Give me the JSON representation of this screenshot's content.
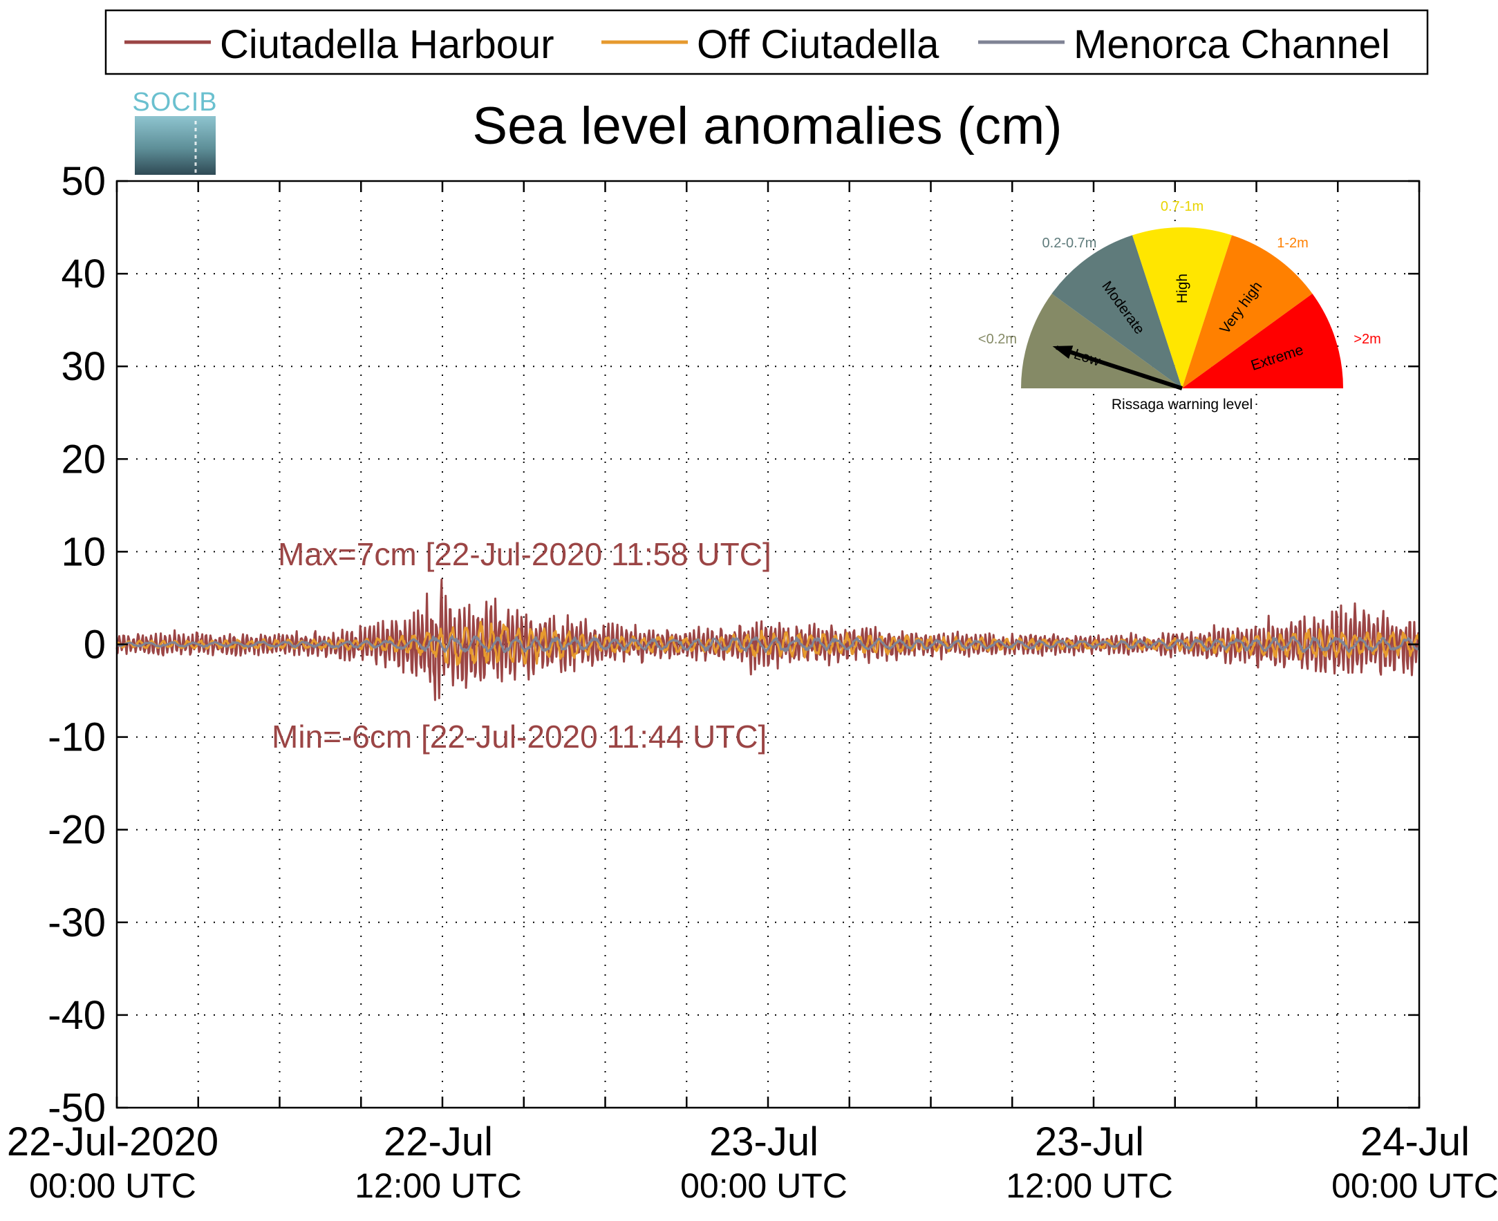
{
  "chart_data": {
    "type": "line",
    "title": "Sea level anomalies (cm)",
    "xlabel": "",
    "ylabel": "",
    "ylim": [
      -50,
      50
    ],
    "yticks": [
      50,
      40,
      30,
      20,
      10,
      0,
      -10,
      -20,
      -30,
      -40,
      -50
    ],
    "ytick_labels": [
      "50",
      "40",
      "30",
      "20",
      "10",
      "0",
      "-10",
      "-20",
      "-30",
      "-40",
      "-50"
    ],
    "xlim_hours": [
      0,
      48
    ],
    "x_major_ticks_hours": [
      0,
      12,
      24,
      36,
      48
    ],
    "x_minor_ticks_hours": [
      3,
      6,
      9,
      15,
      18,
      21,
      27,
      30,
      33,
      39,
      42,
      45
    ],
    "xtick_labels": [
      {
        "date": "22-Jul-2020",
        "time": "00:00 UTC"
      },
      {
        "date": "22-Jul",
        "time": "12:00 UTC"
      },
      {
        "date": "23-Jul",
        "time": "00:00 UTC"
      },
      {
        "date": "23-Jul",
        "time": "12:00 UTC"
      },
      {
        "date": "24-Jul",
        "time": "00:00 UTC"
      }
    ],
    "grid": true,
    "legend_position": "top",
    "series": [
      {
        "name": "Ciutadella Harbour",
        "color": "#9b4545",
        "envelope": [
          [
            0,
            1
          ],
          [
            3,
            1.3
          ],
          [
            6,
            1
          ],
          [
            9,
            1.8
          ],
          [
            10.5,
            3
          ],
          [
            11.5,
            4.5
          ],
          [
            12,
            5.5
          ],
          [
            14,
            4.5
          ],
          [
            16,
            3
          ],
          [
            18,
            2.2
          ],
          [
            21,
            1.5
          ],
          [
            22.5,
            1.8
          ],
          [
            23.5,
            2.8
          ],
          [
            25,
            2.2
          ],
          [
            27,
            1.9
          ],
          [
            29,
            1.5
          ],
          [
            31,
            1.2
          ],
          [
            33,
            1.1
          ],
          [
            36,
            1
          ],
          [
            38,
            1
          ],
          [
            40,
            1.6
          ],
          [
            42,
            2.4
          ],
          [
            44,
            3
          ],
          [
            45,
            3.8
          ],
          [
            47,
            3
          ],
          [
            48,
            2.5
          ]
        ],
        "period_min": 10,
        "noise": 0.6,
        "max_value": 7,
        "max_time_h": 11.97,
        "min_value": -6,
        "min_time_h": 11.73
      },
      {
        "name": "Off Ciutadella",
        "color": "#e69a2e",
        "envelope": [
          [
            0,
            0.4
          ],
          [
            9,
            0.6
          ],
          [
            11,
            1.2
          ],
          [
            12,
            2.2
          ],
          [
            14,
            2.4
          ],
          [
            16,
            1.8
          ],
          [
            18,
            1
          ],
          [
            22,
            0.8
          ],
          [
            24,
            1.5
          ],
          [
            27,
            1.2
          ],
          [
            30,
            0.8
          ],
          [
            36,
            0.5
          ],
          [
            40,
            0.8
          ],
          [
            44,
            1.6
          ],
          [
            48,
            1.3
          ]
        ],
        "period_min": 28,
        "noise": 0.3
      },
      {
        "name": "Menorca Channel",
        "color": "#7f8395",
        "envelope": [
          [
            0,
            0.2
          ],
          [
            10,
            0.4
          ],
          [
            12,
            0.9
          ],
          [
            16,
            0.8
          ],
          [
            20,
            0.6
          ],
          [
            24,
            0.8
          ],
          [
            30,
            0.5
          ],
          [
            36,
            0.4
          ],
          [
            44,
            0.8
          ],
          [
            48,
            0.7
          ]
        ],
        "period_min": 45,
        "noise": 0.15
      }
    ],
    "annotations": [
      {
        "id": "max",
        "text": "Max=7cm [22-Jul-2020 11:58 UTC]",
        "color": "#9b4545"
      },
      {
        "id": "min",
        "text": "Min=-6cm [22-Jul-2020 11:44 UTC]",
        "color": "#9b4545"
      }
    ]
  },
  "logo": {
    "text": "SOCIB"
  },
  "gauge": {
    "title": "Rissaga warning level",
    "segments": [
      {
        "label": "Low",
        "range": "<0.2m",
        "color": "#858a66",
        "range_color": "#858a66"
      },
      {
        "label": "Moderate",
        "range": "0.2-0.7m",
        "color": "#5f7b7b",
        "range_color": "#5f7b7b"
      },
      {
        "label": "High",
        "range": "0.7-1m",
        "color": "#ffe600",
        "range_color": "#e8d400"
      },
      {
        "label": "Very high",
        "range": "1-2m",
        "color": "#ff8000",
        "range_color": "#ff8000"
      },
      {
        "label": "Extreme",
        "range": ">2m",
        "color": "#ff0000",
        "range_color": "#ff0000"
      }
    ],
    "level": "Low"
  }
}
